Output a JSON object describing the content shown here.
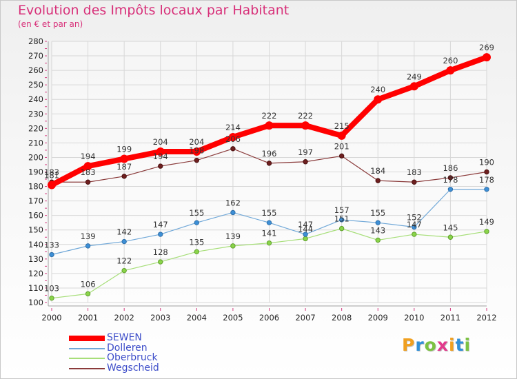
{
  "title": "Evolution des Impôts locaux par Habitant",
  "subtitle": "(en € et par an)",
  "logo": {
    "letters": [
      "P",
      "r",
      "o",
      "x",
      "i",
      "t",
      "i"
    ],
    "colors": [
      "#f0a020",
      "#2f8fd8",
      "#7cc242",
      "#e23a8c",
      "#f0a020",
      "#2f8fd8",
      "#7cc242"
    ]
  },
  "chart_data": {
    "type": "line",
    "title": "Evolution des Impôts locaux par Habitant",
    "subtitle": "(en € et par an)",
    "xlabel": "",
    "ylabel": "",
    "x": [
      "2000",
      "2001",
      "2002",
      "2003",
      "2004",
      "2005",
      "2006",
      "2007",
      "2008",
      "2009",
      "2010",
      "2011",
      "2012"
    ],
    "ylim": [
      100,
      280
    ],
    "yticks": [
      100,
      110,
      120,
      130,
      140,
      150,
      160,
      170,
      180,
      190,
      200,
      210,
      220,
      230,
      240,
      250,
      260,
      270,
      280
    ],
    "grid": true,
    "legend_position": "bottom-left",
    "series": [
      {
        "name": "SEWEN",
        "color": "#ff0000",
        "values": [
          181,
          194,
          199,
          204,
          204,
          214,
          222,
          222,
          215,
          240,
          249,
          260,
          269
        ],
        "labels": [
          "181",
          "194",
          "199",
          "204",
          "204",
          "214",
          "222",
          "222",
          "215",
          "240",
          "249",
          "260",
          "269"
        ]
      },
      {
        "name": "Dolleren",
        "color": "#70a8d8",
        "values": [
          133,
          139,
          142,
          147,
          155,
          162,
          155,
          147,
          157,
          155,
          152,
          178,
          178
        ],
        "labels": [
          "133",
          "139",
          "142",
          "147",
          "155",
          "162",
          "155",
          "147",
          "157",
          "155",
          "152",
          "178",
          "178"
        ]
      },
      {
        "name": "Oberbruck",
        "color": "#a6de78",
        "values": [
          103,
          106,
          122,
          128,
          135,
          139,
          141,
          144,
          151,
          143,
          147,
          145,
          149
        ],
        "labels": [
          "103",
          "106",
          "122",
          "128",
          "135",
          "139",
          "141",
          "144",
          "151",
          "143",
          "147",
          "145",
          "149"
        ]
      },
      {
        "name": "Wegscheid",
        "color": "#8a3a3a",
        "values": [
          183,
          183,
          187,
          194,
          198,
          206,
          196,
          197,
          201,
          184,
          183,
          186,
          190
        ],
        "labels": [
          "183",
          "183",
          "187",
          "194",
          "198",
          "206",
          "196",
          "197",
          "201",
          "184",
          "183",
          "186",
          "190"
        ]
      }
    ]
  }
}
